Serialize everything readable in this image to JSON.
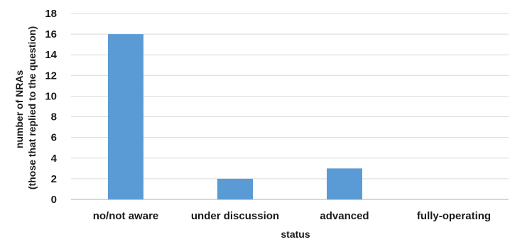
{
  "chart_data": {
    "type": "bar",
    "categories": [
      "no/not aware",
      "under discussion",
      "advanced",
      "fully-operating"
    ],
    "values": [
      16,
      2,
      3,
      0
    ],
    "xlabel": "status",
    "ylabel_lines": [
      "number of NRAs",
      "(those that replied to the question)"
    ],
    "ylim": [
      0,
      18
    ],
    "yticks": [
      0,
      2,
      4,
      6,
      8,
      10,
      12,
      14,
      16,
      18
    ],
    "grid": true,
    "legend": "none",
    "colors": {
      "bar": "#5b9bd5",
      "grid": "#d9d9d9",
      "text": "#1a1a1a"
    }
  }
}
